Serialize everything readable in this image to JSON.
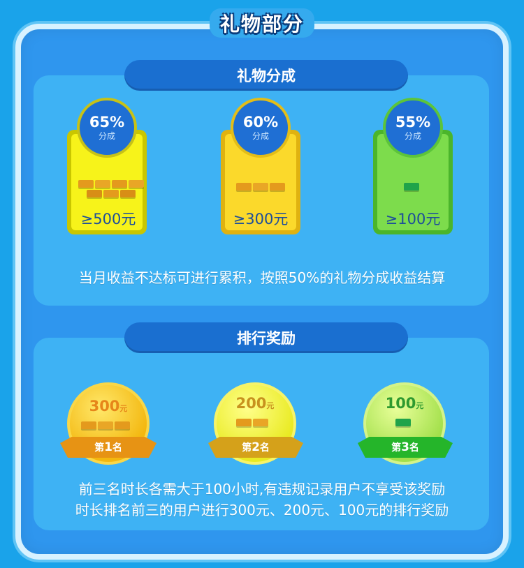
{
  "header": {
    "title": "礼物部分"
  },
  "gift_share": {
    "section_title": "礼物分成",
    "tiers": [
      {
        "percent": "65%",
        "label": "分成",
        "amount": "≥500元",
        "theme": "#f7f31a"
      },
      {
        "percent": "60%",
        "label": "分成",
        "amount": "≥300元",
        "theme": "#fbd92b"
      },
      {
        "percent": "55%",
        "label": "分成",
        "amount": "≥100元",
        "theme": "#7ddc4c"
      }
    ],
    "note": "当月收益不达标可进行累积，按照50%的礼物分成收益结算"
  },
  "ranking": {
    "section_title": "排行奖励",
    "medals": [
      {
        "amount": "300",
        "unit": "元",
        "rank_prefix": "第",
        "rank_num": "1",
        "rank_suffix": "名",
        "color": "#f7c51c"
      },
      {
        "amount": "200",
        "unit": "元",
        "rank_prefix": "第",
        "rank_num": "2",
        "rank_suffix": "名",
        "color": "#eef23a"
      },
      {
        "amount": "100",
        "unit": "元",
        "rank_prefix": "第",
        "rank_num": "3",
        "rank_suffix": "名",
        "color": "#b4ec5a"
      }
    ],
    "note_line1": "前三名时长各需大于100小时,有违规记录用户不享受该奖励",
    "note_line2": "时长排名前三的用户进行300元、200元、100元的排行奖励"
  },
  "colors": {
    "background": "#1aa3ea",
    "panel": "#2f96ee",
    "header_bar": "#1a6fd0"
  }
}
